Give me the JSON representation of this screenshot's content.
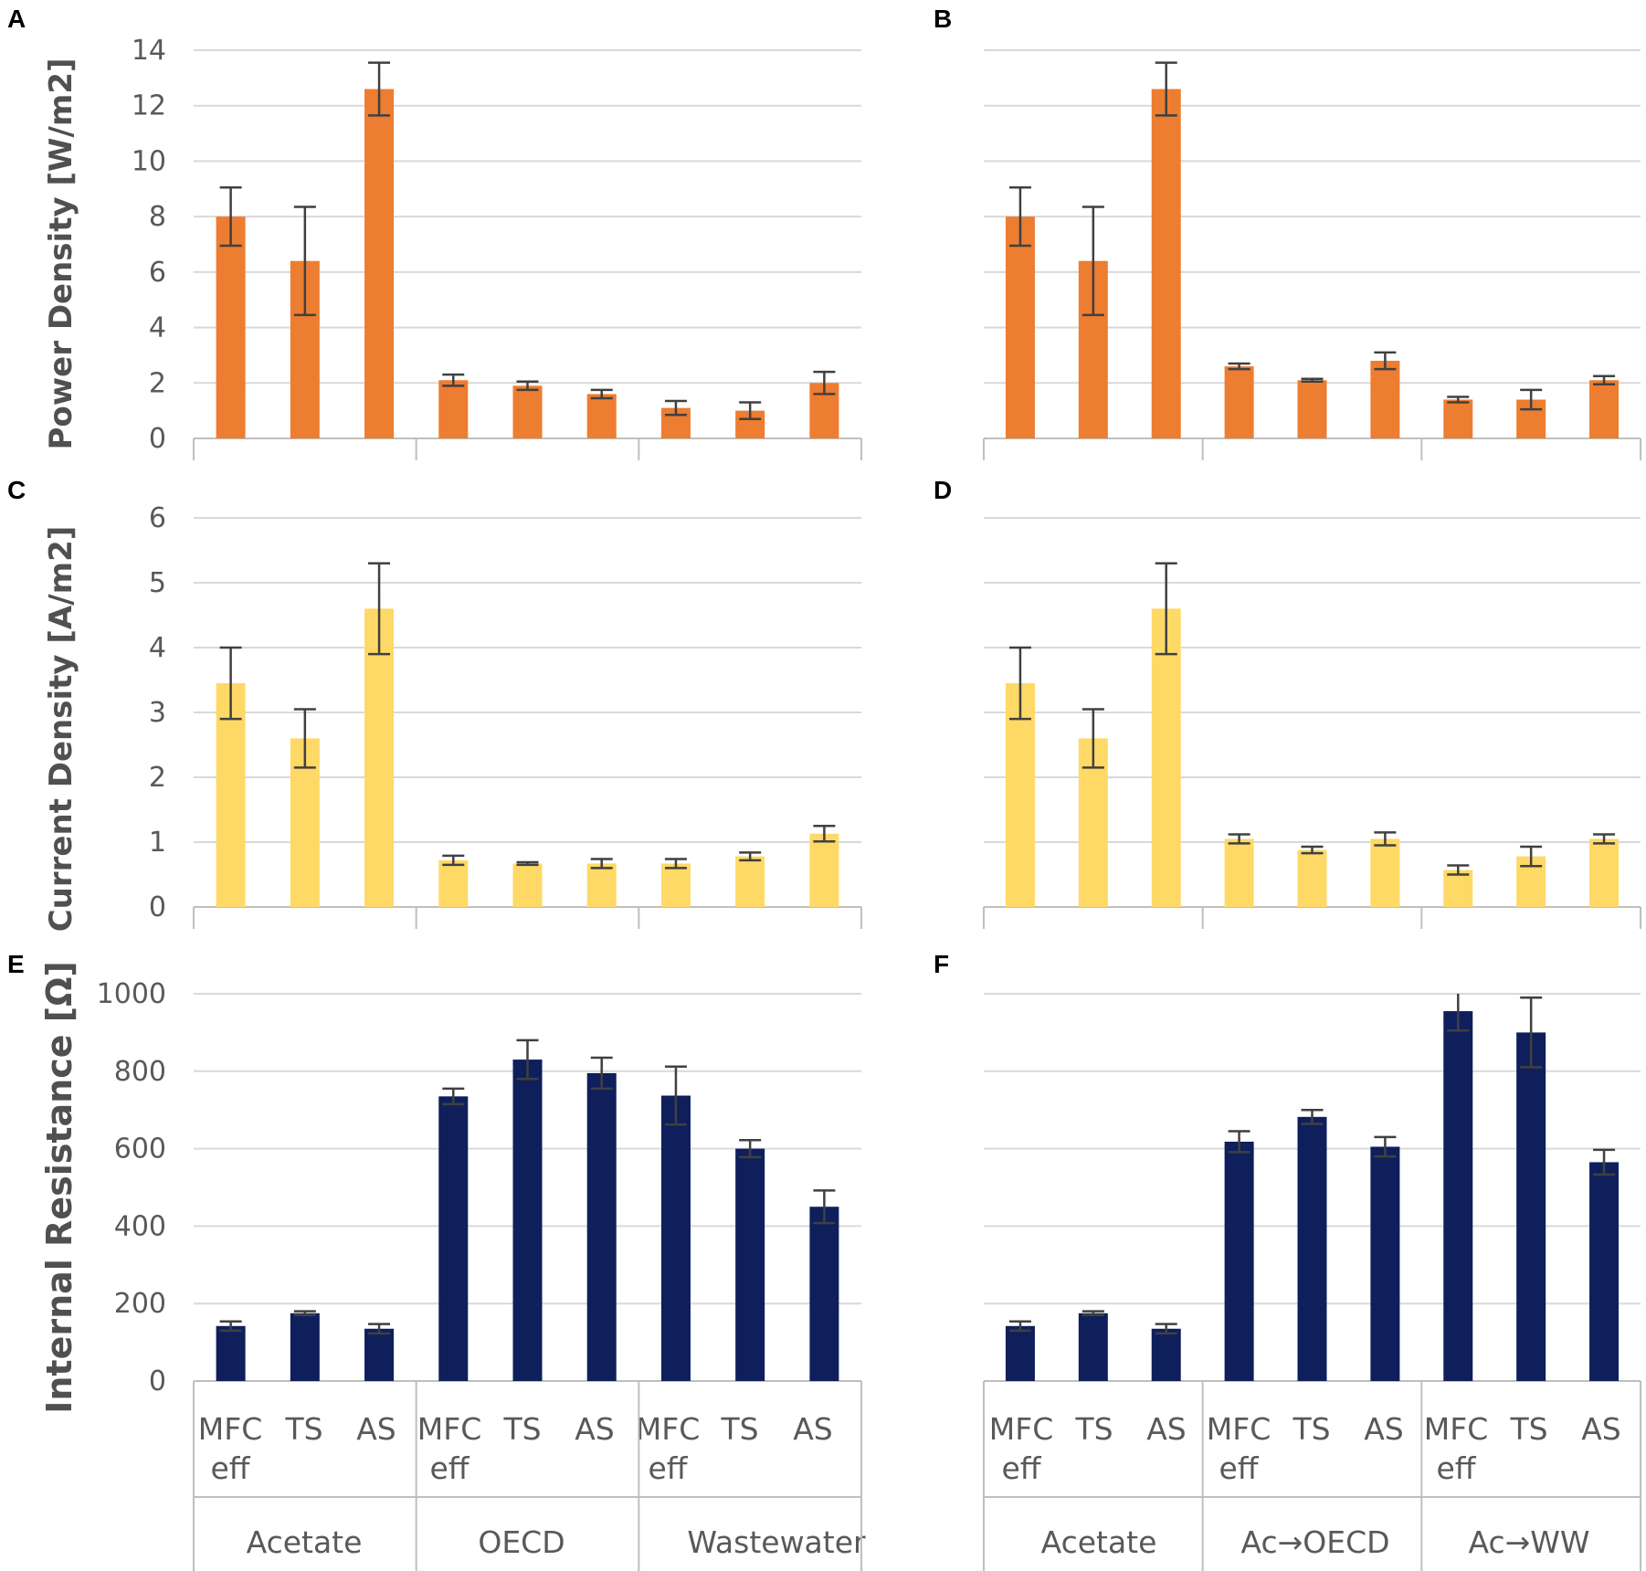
{
  "figure": {
    "panel_letters": [
      "A",
      "B",
      "C",
      "D",
      "E",
      "F"
    ],
    "y_labels": {
      "power": "Power Density [W/m2]",
      "current": "Current Density [A/m2]",
      "resistance": "Internal Resistance [Ω]"
    },
    "categories": [
      "MFC eff",
      "TS",
      "AS",
      "MFC eff",
      "TS",
      "AS",
      "MFC eff",
      "TS",
      "AS"
    ],
    "groups_left": [
      "Acetate",
      "OECD",
      "Wastewater"
    ],
    "groups_right": [
      "Acetate",
      "Ac→OECD",
      "Ac→WW"
    ],
    "colors": {
      "power": "#ed7d31",
      "current": "#ffd966",
      "resistance": "#0e1f5b"
    }
  },
  "chart_data": [
    {
      "panel": "A",
      "type": "bar",
      "title": "",
      "ylabel": "Power Density [W/m2]",
      "ylim": [
        0,
        14
      ],
      "yticks": [
        0,
        2,
        4,
        6,
        8,
        10,
        12,
        14
      ],
      "categories": [
        "MFC eff",
        "TS",
        "AS",
        "MFC eff",
        "TS",
        "AS",
        "MFC eff",
        "TS",
        "AS"
      ],
      "groups": [
        "Acetate",
        "OECD",
        "Wastewater"
      ],
      "values": [
        8.0,
        6.4,
        12.6,
        2.1,
        1.9,
        1.6,
        1.1,
        1.0,
        2.0
      ],
      "errors": [
        1.05,
        1.95,
        0.95,
        0.2,
        0.15,
        0.15,
        0.25,
        0.3,
        0.4
      ],
      "color": "#ed7d31",
      "grid": true
    },
    {
      "panel": "B",
      "type": "bar",
      "title": "",
      "ylabel": "",
      "ylim": [
        0,
        14
      ],
      "yticks": [
        0,
        2,
        4,
        6,
        8,
        10,
        12,
        14
      ],
      "categories": [
        "MFC eff",
        "TS",
        "AS",
        "MFC eff",
        "TS",
        "AS",
        "MFC eff",
        "TS",
        "AS"
      ],
      "groups": [
        "Acetate",
        "Ac→OECD",
        "Ac→WW"
      ],
      "values": [
        8.0,
        6.4,
        12.6,
        2.6,
        2.1,
        2.8,
        1.4,
        1.4,
        2.1
      ],
      "errors": [
        1.05,
        1.95,
        0.95,
        0.1,
        0.05,
        0.3,
        0.1,
        0.35,
        0.15
      ],
      "color": "#ed7d31",
      "grid": true
    },
    {
      "panel": "C",
      "type": "bar",
      "title": "",
      "ylabel": "Current Density [A/m2]",
      "ylim": [
        0,
        6
      ],
      "yticks": [
        0,
        1,
        2,
        3,
        4,
        5,
        6
      ],
      "categories": [
        "MFC eff",
        "TS",
        "AS",
        "MFC eff",
        "TS",
        "AS",
        "MFC eff",
        "TS",
        "AS"
      ],
      "groups": [
        "Acetate",
        "OECD",
        "Wastewater"
      ],
      "values": [
        3.45,
        2.6,
        4.6,
        0.72,
        0.67,
        0.67,
        0.67,
        0.78,
        1.13
      ],
      "errors": [
        0.55,
        0.45,
        0.7,
        0.07,
        0.02,
        0.07,
        0.07,
        0.06,
        0.12
      ],
      "color": "#ffd966",
      "grid": true
    },
    {
      "panel": "D",
      "type": "bar",
      "title": "",
      "ylabel": "",
      "ylim": [
        0,
        6
      ],
      "yticks": [
        0,
        1,
        2,
        3,
        4,
        5,
        6
      ],
      "categories": [
        "MFC eff",
        "TS",
        "AS",
        "MFC eff",
        "TS",
        "AS",
        "MFC eff",
        "TS",
        "AS"
      ],
      "groups": [
        "Acetate",
        "Ac→OECD",
        "Ac→WW"
      ],
      "values": [
        3.45,
        2.6,
        4.6,
        1.05,
        0.88,
        1.05,
        0.57,
        0.78,
        1.05
      ],
      "errors": [
        0.55,
        0.45,
        0.7,
        0.07,
        0.05,
        0.1,
        0.07,
        0.15,
        0.07
      ],
      "color": "#ffd966",
      "grid": true
    },
    {
      "panel": "E",
      "type": "bar",
      "title": "",
      "ylabel": "Internal Resistance [Ω]",
      "ylim": [
        0,
        1000
      ],
      "yticks": [
        0,
        200,
        400,
        600,
        800,
        1000
      ],
      "categories": [
        "MFC eff",
        "TS",
        "AS",
        "MFC eff",
        "TS",
        "AS",
        "MFC eff",
        "TS",
        "AS"
      ],
      "groups": [
        "Acetate",
        "OECD",
        "Wastewater"
      ],
      "values": [
        142,
        175,
        135,
        735,
        830,
        795,
        737,
        600,
        450
      ],
      "errors": [
        12,
        5,
        12,
        20,
        50,
        40,
        75,
        22,
        42
      ],
      "color": "#0e1f5b",
      "grid": true
    },
    {
      "panel": "F",
      "type": "bar",
      "title": "",
      "ylabel": "",
      "ylim": [
        0,
        1000
      ],
      "yticks": [
        0,
        200,
        400,
        600,
        800,
        1000
      ],
      "categories": [
        "MFC eff",
        "TS",
        "AS",
        "MFC eff",
        "TS",
        "AS",
        "MFC eff",
        "TS",
        "AS"
      ],
      "groups": [
        "Acetate",
        "Ac→OECD",
        "Ac→WW"
      ],
      "values": [
        142,
        175,
        135,
        618,
        682,
        605,
        955,
        900,
        565
      ],
      "errors": [
        12,
        5,
        12,
        27,
        18,
        25,
        50,
        90,
        32
      ],
      "color": "#0e1f5b",
      "grid": true
    }
  ]
}
